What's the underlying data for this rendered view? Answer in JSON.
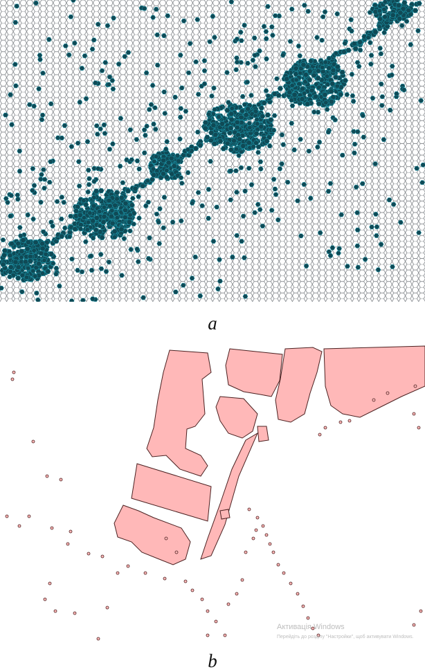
{
  "panels": [
    {
      "caption": "a",
      "grid_color": "#5c6166",
      "fill_color": "#0f4a56",
      "highlight_color": "#1fb0c6"
    },
    {
      "caption": "b",
      "fill_color": "#ffb8b8",
      "outline_color": "#4a2020"
    }
  ],
  "watermark": {
    "title": "Активація Windows",
    "subtitle": "Перейдіть до розділу \"Настройки\", щоб активувати Windows."
  }
}
